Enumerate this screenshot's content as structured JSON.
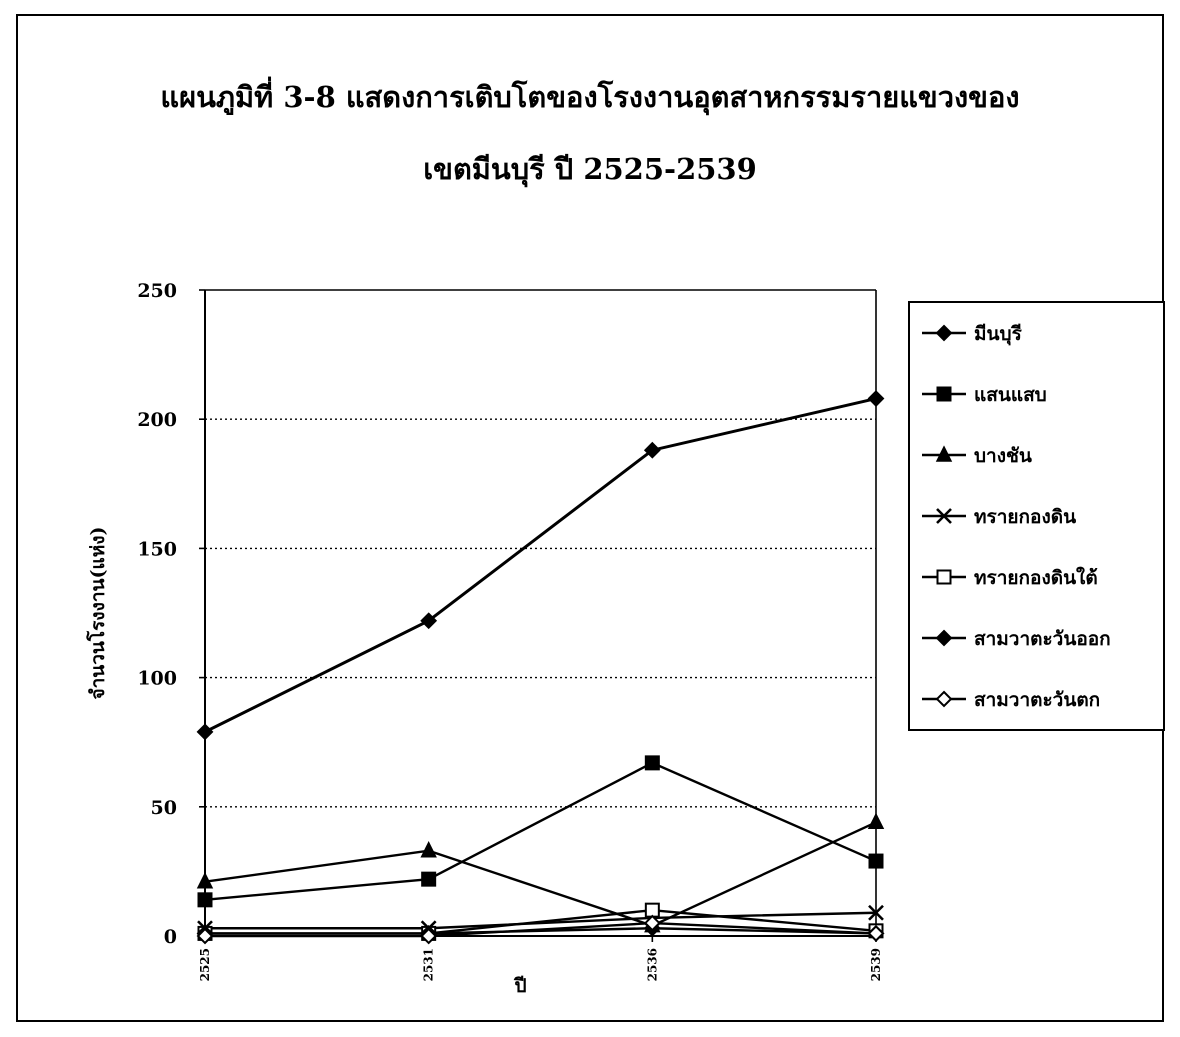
{
  "title_line1": "แผนภูมิที่ 3-8 แสดงการเติบโตของโรงงานอุตสาหกรรมรายแขวงของ",
  "title_line2": "เขตมีนบุรี ปี 2525-2539",
  "chart_data": {
    "type": "line",
    "title": "แผนภูมิที่ 3-8 แสดงการเติบโตของโรงงานอุตสาหกรรมรายแขวงของ เขตมีนบุรี ปี 2525-2539",
    "xlabel": "ปี",
    "ylabel": "จำนวนโรงงาน(แห่ง)",
    "categories": [
      "2525",
      "2531",
      "2536",
      "2539"
    ],
    "ylim": [
      0,
      250
    ],
    "yticks": [
      0,
      50,
      100,
      150,
      200,
      250
    ],
    "grid": "horizontal dotted",
    "legend_position": "right",
    "series": [
      {
        "name": "มีนบุรี",
        "marker": "diamond",
        "values": [
          79,
          122,
          188,
          208
        ]
      },
      {
        "name": "แสนแสบ",
        "marker": "square",
        "values": [
          14,
          22,
          67,
          29
        ]
      },
      {
        "name": "บางชัน",
        "marker": "triangle",
        "values": [
          21,
          33,
          4,
          44
        ]
      },
      {
        "name": "ทรายกองดิน",
        "marker": "x",
        "values": [
          3,
          3,
          7,
          9
        ]
      },
      {
        "name": "ทรายกองดินใต้",
        "marker": "open-square",
        "values": [
          1,
          1,
          10,
          2
        ]
      },
      {
        "name": "สามวาตะวันออก",
        "marker": "diamond",
        "values": [
          1,
          1,
          3,
          1
        ]
      },
      {
        "name": "สามวาตะวันตก",
        "marker": "open-diamond",
        "values": [
          0,
          0,
          5,
          1
        ]
      }
    ]
  }
}
